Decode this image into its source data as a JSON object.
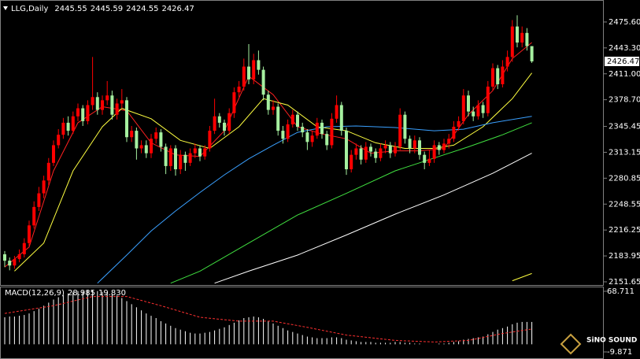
{
  "chart_data": [
    {
      "type": "candlestick",
      "title": "LLG,Daily",
      "up_color": "#ff0000",
      "down_color": "#a6f0a0",
      "open": [
        2186,
        2178,
        2172,
        2180,
        2186,
        2200,
        2222,
        2245,
        2262,
        2278,
        2300,
        2322,
        2335,
        2350,
        2340,
        2358,
        2368,
        2352,
        2372,
        2382,
        2366,
        2378,
        2384,
        2360,
        2374,
        2378,
        2332,
        2340,
        2318,
        2322,
        2312,
        2330,
        2338,
        2320,
        2296,
        2318,
        2292,
        2310,
        2300,
        2312,
        2318,
        2308,
        2318,
        2340,
        2358,
        2350,
        2340,
        2362,
        2388,
        2395,
        2420,
        2404,
        2428,
        2416,
        2385,
        2366,
        2370,
        2340,
        2330,
        2348,
        2360,
        2345,
        2338,
        2326,
        2334,
        2350,
        2336,
        2322,
        2355,
        2372,
        2340,
        2292,
        2310,
        2318,
        2304,
        2320,
        2314,
        2306,
        2318,
        2322,
        2312,
        2320,
        2360,
        2330,
        2318,
        2328,
        2310,
        2300,
        2305,
        2322,
        2316,
        2324,
        2330,
        2345,
        2352,
        2384,
        2364,
        2358,
        2372,
        2362,
        2395,
        2418,
        2398,
        2420,
        2432,
        2470,
        2450,
        2462,
        2445.55
      ],
      "high": [
        2190,
        2182,
        2184,
        2192,
        2206,
        2228,
        2252,
        2270,
        2284,
        2306,
        2328,
        2342,
        2356,
        2358,
        2364,
        2374,
        2372,
        2378,
        2432,
        2388,
        2384,
        2402,
        2390,
        2380,
        2392,
        2382,
        2346,
        2344,
        2328,
        2328,
        2336,
        2344,
        2342,
        2324,
        2322,
        2322,
        2316,
        2314,
        2318,
        2324,
        2322,
        2322,
        2346,
        2380,
        2362,
        2354,
        2368,
        2394,
        2402,
        2430,
        2448,
        2436,
        2440,
        2420,
        2390,
        2378,
        2374,
        2346,
        2354,
        2366,
        2364,
        2350,
        2342,
        2340,
        2356,
        2354,
        2340,
        2362,
        2384,
        2376,
        2344,
        2316,
        2324,
        2322,
        2326,
        2324,
        2318,
        2324,
        2328,
        2326,
        2326,
        2368,
        2364,
        2334,
        2334,
        2332,
        2314,
        2316,
        2328,
        2326,
        2330,
        2336,
        2352,
        2358,
        2392,
        2390,
        2370,
        2378,
        2376,
        2402,
        2424,
        2422,
        2428,
        2440,
        2478,
        2484,
        2470,
        2468,
        2445.59
      ],
      "low": [
        2170,
        2166,
        2168,
        2176,
        2182,
        2196,
        2218,
        2240,
        2256,
        2272,
        2296,
        2318,
        2330,
        2334,
        2336,
        2352,
        2346,
        2348,
        2366,
        2360,
        2360,
        2372,
        2354,
        2354,
        2368,
        2326,
        2326,
        2304,
        2312,
        2306,
        2306,
        2324,
        2314,
        2286,
        2290,
        2284,
        2286,
        2290,
        2296,
        2306,
        2302,
        2304,
        2314,
        2336,
        2344,
        2334,
        2336,
        2356,
        2382,
        2390,
        2398,
        2398,
        2410,
        2378,
        2360,
        2360,
        2334,
        2324,
        2326,
        2344,
        2340,
        2332,
        2316,
        2320,
        2330,
        2330,
        2316,
        2318,
        2350,
        2334,
        2285,
        2288,
        2304,
        2298,
        2300,
        2308,
        2300,
        2302,
        2312,
        2306,
        2308,
        2316,
        2324,
        2312,
        2312,
        2304,
        2292,
        2296,
        2300,
        2310,
        2312,
        2318,
        2326,
        2340,
        2348,
        2358,
        2352,
        2354,
        2356,
        2358,
        2390,
        2392,
        2394,
        2414,
        2426,
        2444,
        2444,
        2440,
        2424.55
      ],
      "close": [
        2178,
        2172,
        2180,
        2186,
        2200,
        2222,
        2245,
        2262,
        2278,
        2300,
        2322,
        2335,
        2350,
        2340,
        2358,
        2368,
        2352,
        2372,
        2382,
        2366,
        2378,
        2384,
        2360,
        2374,
        2378,
        2332,
        2340,
        2318,
        2322,
        2312,
        2330,
        2338,
        2320,
        2296,
        2318,
        2292,
        2310,
        2300,
        2312,
        2318,
        2308,
        2318,
        2340,
        2358,
        2350,
        2340,
        2362,
        2388,
        2395,
        2420,
        2404,
        2428,
        2416,
        2385,
        2366,
        2370,
        2340,
        2330,
        2348,
        2360,
        2345,
        2338,
        2326,
        2334,
        2350,
        2336,
        2322,
        2355,
        2372,
        2340,
        2292,
        2310,
        2318,
        2304,
        2320,
        2314,
        2306,
        2318,
        2322,
        2312,
        2320,
        2360,
        2330,
        2318,
        2328,
        2310,
        2300,
        2305,
        2322,
        2316,
        2324,
        2330,
        2345,
        2352,
        2384,
        2364,
        2358,
        2372,
        2362,
        2395,
        2418,
        2398,
        2420,
        2432,
        2470,
        2450,
        2462,
        2445.55,
        2426.47
      ],
      "series": [
        {
          "color": "#ff2020",
          "x": [
            0,
            5,
            10,
            15,
            20,
            25,
            30,
            35,
            40,
            45,
            50,
            55,
            60,
            65,
            70,
            75,
            80,
            85,
            90,
            95,
            100,
            104,
            108
          ],
          "values": [
            2170,
            2195,
            2290,
            2350,
            2370,
            2365,
            2325,
            2310,
            2308,
            2340,
            2408,
            2385,
            2345,
            2336,
            2330,
            2312,
            2315,
            2315,
            2318,
            2360,
            2390,
            2430,
            2450
          ]
        },
        {
          "color": "#ffff40",
          "x": [
            2,
            8,
            14,
            20,
            24,
            30,
            36,
            42,
            48,
            53,
            58,
            64,
            70,
            76,
            82,
            88,
            92,
            98,
            104,
            108
          ],
          "values": [
            2165,
            2200,
            2290,
            2345,
            2368,
            2355,
            2328,
            2318,
            2345,
            2380,
            2372,
            2345,
            2340,
            2325,
            2318,
            2318,
            2322,
            2345,
            2380,
            2412
          ]
        },
        {
          "color": "#3aa0ff",
          "x": [
            19,
            25,
            30,
            35,
            40,
            45,
            50,
            55,
            60,
            66,
            72,
            80,
            88,
            94,
            100,
            108
          ],
          "values": [
            2150,
            2185,
            2215,
            2240,
            2263,
            2285,
            2305,
            2322,
            2338,
            2345,
            2346,
            2344,
            2340,
            2342,
            2350,
            2358
          ]
        },
        {
          "color": "#40e040",
          "x": [
            34,
            40,
            50,
            60,
            70,
            80,
            88,
            95,
            102,
            108
          ],
          "values": [
            2150,
            2165,
            2200,
            2235,
            2262,
            2290,
            2306,
            2320,
            2335,
            2350
          ]
        },
        {
          "color": "#ffffff",
          "x": [
            43,
            50,
            60,
            70,
            80,
            90,
            100,
            108
          ],
          "values": [
            2150,
            2165,
            2185,
            2210,
            2236,
            2260,
            2287,
            2312
          ]
        },
        {
          "color": "#ffff40",
          "x": [
            104,
            108
          ],
          "values": [
            2153,
            2162
          ]
        }
      ],
      "ylim": [
        2147.7,
        2499.1
      ],
      "yticks": [
        {
          "value": 2475.6,
          "label": "2475.60"
        },
        {
          "value": 2443.3,
          "label": "2443.30"
        },
        {
          "value": 2411,
          "label": "2411.00"
        },
        {
          "value": 2378.7,
          "label": "2378.70"
        },
        2345.45,
        2313.15,
        2280.85,
        2248.55,
        2216.25,
        2183.95,
        2151.65
      ]
    },
    {
      "type": "macd",
      "title": "MACD(12,26,9)",
      "histogram": {
        "color": "#ffffff",
        "values": [
          35,
          36,
          36,
          37,
          38,
          40,
          43,
          46,
          50,
          54,
          58,
          61,
          64,
          66,
          68,
          69,
          69,
          70,
          70,
          69,
          68,
          67,
          65,
          63,
          60,
          56,
          52,
          48,
          44,
          40,
          37,
          34,
          30,
          27,
          24,
          21,
          19,
          17,
          15,
          14,
          14,
          15,
          16,
          18,
          20,
          22,
          25,
          28,
          31,
          34,
          35,
          36,
          35,
          33,
          30,
          27,
          24,
          21,
          18,
          16,
          14,
          12,
          10,
          9,
          8,
          8,
          8,
          9,
          9,
          8,
          6,
          5,
          4,
          3,
          3,
          3,
          2,
          2,
          2,
          2,
          3,
          3,
          2,
          2,
          1,
          1,
          0,
          0,
          0,
          1,
          1,
          2,
          3,
          4,
          6,
          7,
          8,
          9,
          10,
          13,
          16,
          19,
          21,
          23,
          26,
          28,
          29,
          29,
          28.985
        ]
      },
      "signal": {
        "color": "#ff3030",
        "x": [
          0,
          10,
          18,
          25,
          32,
          40,
          48,
          55,
          62,
          70,
          80,
          88,
          95,
          102,
          108
        ],
        "values": [
          40,
          50,
          62,
          62,
          50,
          35,
          30,
          30,
          22,
          12,
          5,
          3,
          5,
          14,
          19.83
        ],
        "value_labels": [
          null,
          null,
          null,
          null,
          null,
          null,
          null,
          null,
          null,
          null,
          null,
          null,
          null,
          null,
          "19.830"
        ]
      },
      "ylim": [
        -14.97,
        72.79
      ],
      "yticks": [
        68.711,
        -9.871
      ]
    }
  ],
  "logo": "SiNO SOUND"
}
